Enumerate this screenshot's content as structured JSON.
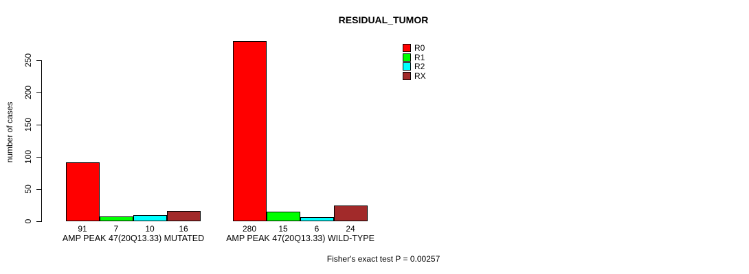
{
  "title": "RESIDUAL_TUMOR",
  "footer": "Fisher's exact test P = 0.00257",
  "chart_data": {
    "type": "bar",
    "title": "RESIDUAL_TUMOR",
    "xlabel": "",
    "ylabel": "number of cases",
    "ylim": [
      0,
      250
    ],
    "yticks": [
      0,
      50,
      100,
      150,
      200,
      250
    ],
    "grid": false,
    "legend_position": "top-right",
    "categories": [
      "AMP PEAK 47(20Q13.33) MUTATED",
      "AMP PEAK 47(20Q13.33) WILD-TYPE"
    ],
    "series": [
      {
        "name": "R0",
        "color": "#ff0000",
        "values": [
          91,
          280
        ]
      },
      {
        "name": "R1",
        "color": "#00ff00",
        "values": [
          7,
          15
        ]
      },
      {
        "name": "R2",
        "color": "#00ffff",
        "values": [
          10,
          6
        ]
      },
      {
        "name": "RX",
        "color": "#a22a2a",
        "values": [
          16,
          24
        ]
      }
    ],
    "bar_value_labels": [
      [
        91,
        7,
        10,
        16
      ],
      [
        280,
        15,
        6,
        24
      ]
    ],
    "annotation": "Fisher's exact test P = 0.00257"
  }
}
